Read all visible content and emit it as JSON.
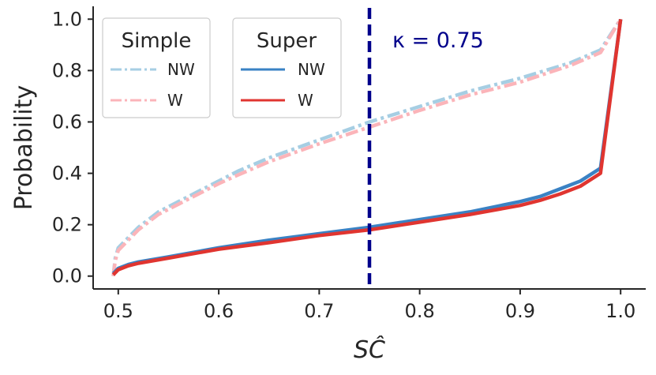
{
  "chart_data": {
    "type": "line",
    "xlabel": "SĈ",
    "ylabel": "Probability",
    "xlim": [
      0.475,
      1.025
    ],
    "ylim": [
      -0.05,
      1.05
    ],
    "xticks": [
      0.5,
      0.6,
      0.7,
      0.8,
      0.9,
      1.0
    ],
    "xtick_labels": [
      "0.5",
      "0.6",
      "0.7",
      "0.8",
      "0.9",
      "1.0"
    ],
    "yticks": [
      0.0,
      0.2,
      0.4,
      0.6,
      0.8,
      1.0
    ],
    "ytick_labels": [
      "0.0",
      "0.2",
      "0.4",
      "0.6",
      "0.8",
      "1.0"
    ],
    "grid": false,
    "vline": {
      "x": 0.75,
      "label": "κ = 0.75",
      "color": "#00008b"
    },
    "legend_groups": [
      {
        "title": "Simple",
        "entries": [
          "NW",
          "W"
        ],
        "placement": "top-left"
      },
      {
        "title": "Super",
        "entries": [
          "NW",
          "W"
        ],
        "placement": "top-left"
      }
    ],
    "series": [
      {
        "group": "Simple",
        "name": "NW",
        "color": "#a6cee3",
        "style": "dashdot",
        "points": [
          [
            0.495,
            0.0
          ],
          [
            0.497,
            0.07
          ],
          [
            0.5,
            0.11
          ],
          [
            0.51,
            0.15
          ],
          [
            0.52,
            0.19
          ],
          [
            0.54,
            0.25
          ],
          [
            0.56,
            0.29
          ],
          [
            0.58,
            0.33
          ],
          [
            0.6,
            0.37
          ],
          [
            0.62,
            0.41
          ],
          [
            0.65,
            0.46
          ],
          [
            0.7,
            0.53
          ],
          [
            0.75,
            0.6
          ],
          [
            0.8,
            0.66
          ],
          [
            0.85,
            0.72
          ],
          [
            0.9,
            0.77
          ],
          [
            0.95,
            0.83
          ],
          [
            0.98,
            0.88
          ],
          [
            1.0,
            1.0
          ]
        ]
      },
      {
        "group": "Simple",
        "name": "W",
        "color": "#fbb4b9",
        "style": "dashdot",
        "points": [
          [
            0.495,
            0.0
          ],
          [
            0.497,
            0.06
          ],
          [
            0.5,
            0.1
          ],
          [
            0.51,
            0.14
          ],
          [
            0.52,
            0.18
          ],
          [
            0.54,
            0.24
          ],
          [
            0.56,
            0.28
          ],
          [
            0.58,
            0.32
          ],
          [
            0.6,
            0.36
          ],
          [
            0.62,
            0.395
          ],
          [
            0.65,
            0.445
          ],
          [
            0.7,
            0.515
          ],
          [
            0.75,
            0.58
          ],
          [
            0.8,
            0.645
          ],
          [
            0.85,
            0.705
          ],
          [
            0.9,
            0.755
          ],
          [
            0.95,
            0.82
          ],
          [
            0.98,
            0.87
          ],
          [
            1.0,
            1.0
          ]
        ]
      },
      {
        "group": "Super",
        "name": "NW",
        "color": "#3a82c4",
        "style": "solid",
        "points": [
          [
            0.495,
            0.01
          ],
          [
            0.5,
            0.03
          ],
          [
            0.51,
            0.045
          ],
          [
            0.52,
            0.055
          ],
          [
            0.55,
            0.075
          ],
          [
            0.6,
            0.11
          ],
          [
            0.65,
            0.14
          ],
          [
            0.7,
            0.165
          ],
          [
            0.75,
            0.19
          ],
          [
            0.8,
            0.22
          ],
          [
            0.85,
            0.25
          ],
          [
            0.9,
            0.29
          ],
          [
            0.92,
            0.31
          ],
          [
            0.94,
            0.34
          ],
          [
            0.96,
            0.37
          ],
          [
            0.98,
            0.42
          ],
          [
            1.0,
            1.0
          ]
        ]
      },
      {
        "group": "Super",
        "name": "W",
        "color": "#e03530",
        "style": "solid",
        "points": [
          [
            0.495,
            0.005
          ],
          [
            0.5,
            0.025
          ],
          [
            0.51,
            0.04
          ],
          [
            0.52,
            0.05
          ],
          [
            0.55,
            0.07
          ],
          [
            0.6,
            0.105
          ],
          [
            0.65,
            0.13
          ],
          [
            0.7,
            0.158
          ],
          [
            0.75,
            0.18
          ],
          [
            0.8,
            0.21
          ],
          [
            0.85,
            0.24
          ],
          [
            0.9,
            0.275
          ],
          [
            0.92,
            0.295
          ],
          [
            0.94,
            0.32
          ],
          [
            0.96,
            0.35
          ],
          [
            0.98,
            0.4
          ],
          [
            1.0,
            1.0
          ]
        ]
      }
    ]
  }
}
